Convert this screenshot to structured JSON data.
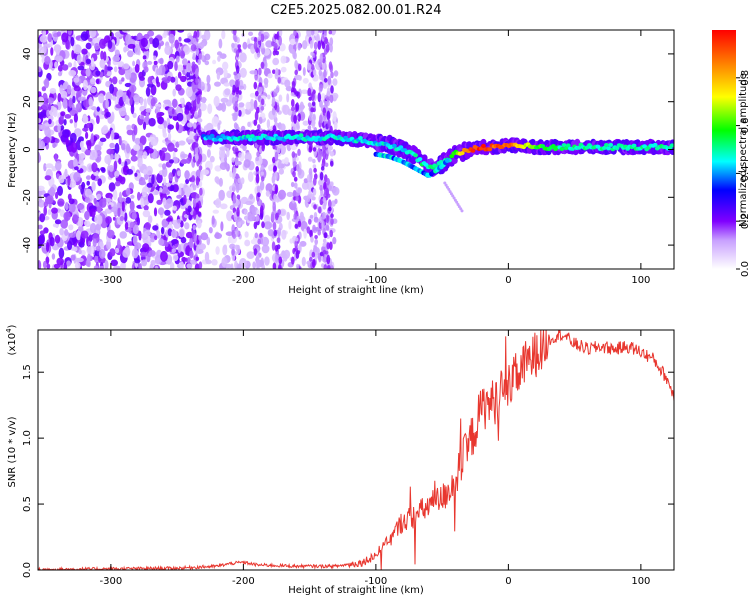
{
  "title": "C2E5.2025.082.00.01.R24",
  "chart_data": [
    {
      "type": "heatmap",
      "xlabel": "Height of straight line (km)",
      "ylabel": "Frequency (Hz)",
      "xlim": [
        -355,
        125
      ],
      "ylim": [
        -50,
        50
      ],
      "xticks": [
        -300,
        -200,
        -100,
        0,
        100
      ],
      "yticks": [
        -40,
        -20,
        0,
        20,
        40
      ],
      "colorbar": {
        "label": "Normalized spectral amplitude",
        "range": [
          0,
          1
        ],
        "ticks": [
          "0.0",
          "0.2",
          "0.4",
          "0.6",
          "0.8"
        ]
      },
      "ridge": {
        "x": [
          -230,
          -200,
          -160,
          -130,
          -110,
          -100,
          -90,
          -80,
          -70,
          -60,
          -50,
          -40,
          -30,
          -20,
          -10,
          0,
          20,
          40,
          60,
          80,
          100,
          125
        ],
        "frequency_hz": [
          5,
          5,
          5,
          5,
          4,
          3,
          2,
          0,
          -3,
          -8,
          -6,
          -2,
          0,
          1,
          1,
          2,
          1,
          1,
          1,
          1,
          1,
          1
        ],
        "amplitude": [
          0.4,
          0.45,
          0.45,
          0.45,
          0.45,
          0.45,
          0.45,
          0.45,
          0.5,
          0.5,
          0.45,
          0.6,
          0.9,
          0.95,
          0.9,
          0.9,
          0.6,
          0.5,
          0.5,
          0.5,
          0.5,
          0.5
        ]
      }
    },
    {
      "type": "line",
      "xlabel": "Height of straight line (km)",
      "ylabel": "SNR (10 * v/v)",
      "y_multiplier": "x10^4",
      "xlim": [
        -355,
        125
      ],
      "ylim": [
        0,
        1.82
      ],
      "xticks": [
        -300,
        -200,
        -100,
        0,
        100
      ],
      "yticks": [
        "0.0",
        "0.5",
        "1.0",
        "1.5"
      ],
      "color": "#e8372f",
      "series": [
        {
          "x": [
            -355,
            -300,
            -250,
            -220,
            -210,
            -200,
            -190,
            -160,
            -130,
            -110,
            -100,
            -90,
            -80,
            -70,
            -60,
            -50,
            -40,
            -30,
            -20,
            -10,
            0,
            10,
            20,
            30,
            40,
            50,
            60,
            70,
            80,
            90,
            100,
            110,
            120,
            125
          ],
          "values": [
            0.005,
            0.01,
            0.015,
            0.03,
            0.05,
            0.06,
            0.04,
            0.03,
            0.03,
            0.06,
            0.12,
            0.22,
            0.38,
            0.42,
            0.5,
            0.55,
            0.7,
            0.95,
            1.25,
            1.3,
            1.4,
            1.55,
            1.65,
            1.75,
            1.8,
            1.72,
            1.68,
            1.7,
            1.68,
            1.7,
            1.66,
            1.6,
            1.45,
            1.32
          ]
        }
      ]
    }
  ]
}
